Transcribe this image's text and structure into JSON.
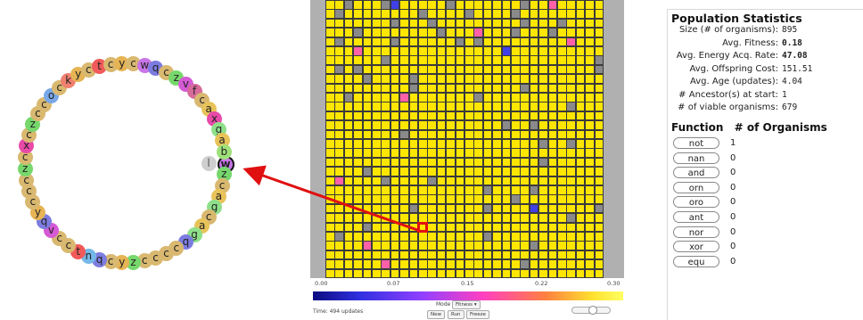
{
  "genome": {
    "current_index": 0,
    "instructions": [
      "w",
      "z",
      "c",
      "a",
      "g",
      "c",
      "a",
      "g",
      "q",
      "c",
      "c",
      "c",
      "c",
      "z",
      "y",
      "c",
      "q",
      "n",
      "t",
      "c",
      "c",
      "v",
      "q",
      "y",
      "c",
      "c",
      "c",
      "z",
      "c",
      "x",
      "c",
      "z",
      "c",
      "c",
      "o",
      "c",
      "k",
      "y",
      "c",
      "t",
      "c",
      "y",
      "c",
      "w",
      "q",
      "c",
      "z",
      "v",
      "f",
      "c",
      "a",
      "x",
      "g",
      "a",
      "b"
    ],
    "ip_label": "l",
    "colors": {
      "c": "#d9b870",
      "a": "#e7c35a",
      "b": "#9fe07a",
      "g": "#8ee08a",
      "z": "#76d86c",
      "q": "#7c7ce0",
      "w": "#c875e8",
      "y": "#e6b455",
      "v": "#d55ad5",
      "n": "#74b8e8",
      "t": "#f05a5a",
      "x": "#e84aa8",
      "o": "#78a8e8",
      "k": "#f08070",
      "f": "#d66a9a"
    }
  },
  "world": {
    "cols": 30,
    "rows": 30,
    "selected": [
      10,
      24
    ],
    "palette": {
      "y": "#ffe600",
      "o": "#ffa820",
      "m": "#ff60a8",
      "g": "#8a8a8a",
      "b": "#4040e8",
      "p": "#d070e8"
    },
    "cells": [
      "yygyyygbyyyyygyyyyyyygyymyyyyy",
      "ygyyyyyyyygyyyygyyyygyyyyyyyyy",
      "yyyyyyygyyygyyyyyyyyygyyygyyyy",
      "yyygyyyyyyyygyyymyyygyyygyyyyy",
      "ygyyyyygyyyyyygygyyyyyyyyymyyy",
      "yyymyyyyyyyyyyyyyyybyyyyyyyyyy",
      "yyyyyygyyyyyyyyyyyyyyyyyyyyyyg",
      "ygygyyyyyyyyyyyyyyyyyyyyyyyyyg",
      "yyyygyyyygyyyyyyyyyyyyyyyyyyyy",
      "yyyyyyyyygyyyyyyyyyyygyyyyyyyy",
      "yygyyyyymyyyyyyygyyyyyyyyyyyyy",
      "yyyyyyyyyyyyyyyyyyyyyyyyyygyyy",
      "yyyyyyyyyyyyyyyyyyyyyyyyyyyyyy",
      "yyyyyyyyyyyyyyyyyyygyygyyyyyyy",
      "yyyyyyyygyyyyyyyyyyyyyyyyyyyyy",
      "yyyyyyyyyyyyyyyyyyyyyyygyygyyy",
      "yyyyyyyyyyyyyyyyyyyyyyyyyyyyyy",
      "yyyyyyyyyyyyyyyyyyyyyyygyyyyyy",
      "yyyygyyyyyyyyyyyyyyyyyyyyyyyyy",
      "ymyyyygyyyygyyyyyyyyyyyyyyyyyy",
      "yyyyyyyyyyyyyyyyygyyyygyyyyyyy",
      "yyyyyyyyyyyyyyyyyyyygyyyyyyyyy",
      "yyyyyyyyygyyyyyyygyyyybyyyyyyg",
      "yyyyyyyyyyyyyyyyyyyyyyyyyygyyy",
      "yyyygyyyyyyyyyyyyyyyyyyyyyyyyy",
      "ygyyyyyyyyyyyyyyygyyyyyyyyyyyy",
      "yyyymyyyyyyyyyyyyyyyyygyyyyyyy",
      "yyyyyyyyyyyyyyyyyyyyyyyyyyyyyy",
      "yyyyyymyyyyyyyyyyyyyygyyyyyyyy",
      "yyyyyyyyyyyyyyyyyyyyyyyyyyyyyy"
    ],
    "scale_labels": [
      "0.00",
      "0.07",
      "0.15",
      "0.22",
      "0.30"
    ],
    "time_text": "Time: 494 updates",
    "mode_label": "Mode",
    "mode_value": "Fitness",
    "buttons": {
      "new": "New",
      "run": "Run",
      "freeze": "Freeze"
    }
  },
  "stats": {
    "title": "Population Statistics",
    "rows": [
      {
        "label": "Size (# of organisms):",
        "value": "895",
        "bold": false
      },
      {
        "label": "Avg. Fitness:",
        "value": "0.18",
        "bold": true
      },
      {
        "label": "Avg. Energy Acq. Rate:",
        "value": "47.08",
        "bold": true
      },
      {
        "label": "Avg. Offspring Cost:",
        "value": "151.51",
        "bold": false
      },
      {
        "label": "Avg. Age (updates):",
        "value": "4.04",
        "bold": false
      },
      {
        "label": "# Ancestor(s) at start:",
        "value": "1",
        "bold": false
      },
      {
        "label": "# of viable organisms:",
        "value": "679",
        "bold": false
      }
    ],
    "function_header": "Function",
    "count_header": "# of Organisms",
    "functions": [
      {
        "name": "not",
        "count": "1"
      },
      {
        "name": "nan",
        "count": "0"
      },
      {
        "name": "and",
        "count": "0"
      },
      {
        "name": "orn",
        "count": "0"
      },
      {
        "name": "oro",
        "count": "0"
      },
      {
        "name": "ant",
        "count": "0"
      },
      {
        "name": "nor",
        "count": "0"
      },
      {
        "name": "xor",
        "count": "0"
      },
      {
        "name": "equ",
        "count": "0"
      }
    ]
  }
}
